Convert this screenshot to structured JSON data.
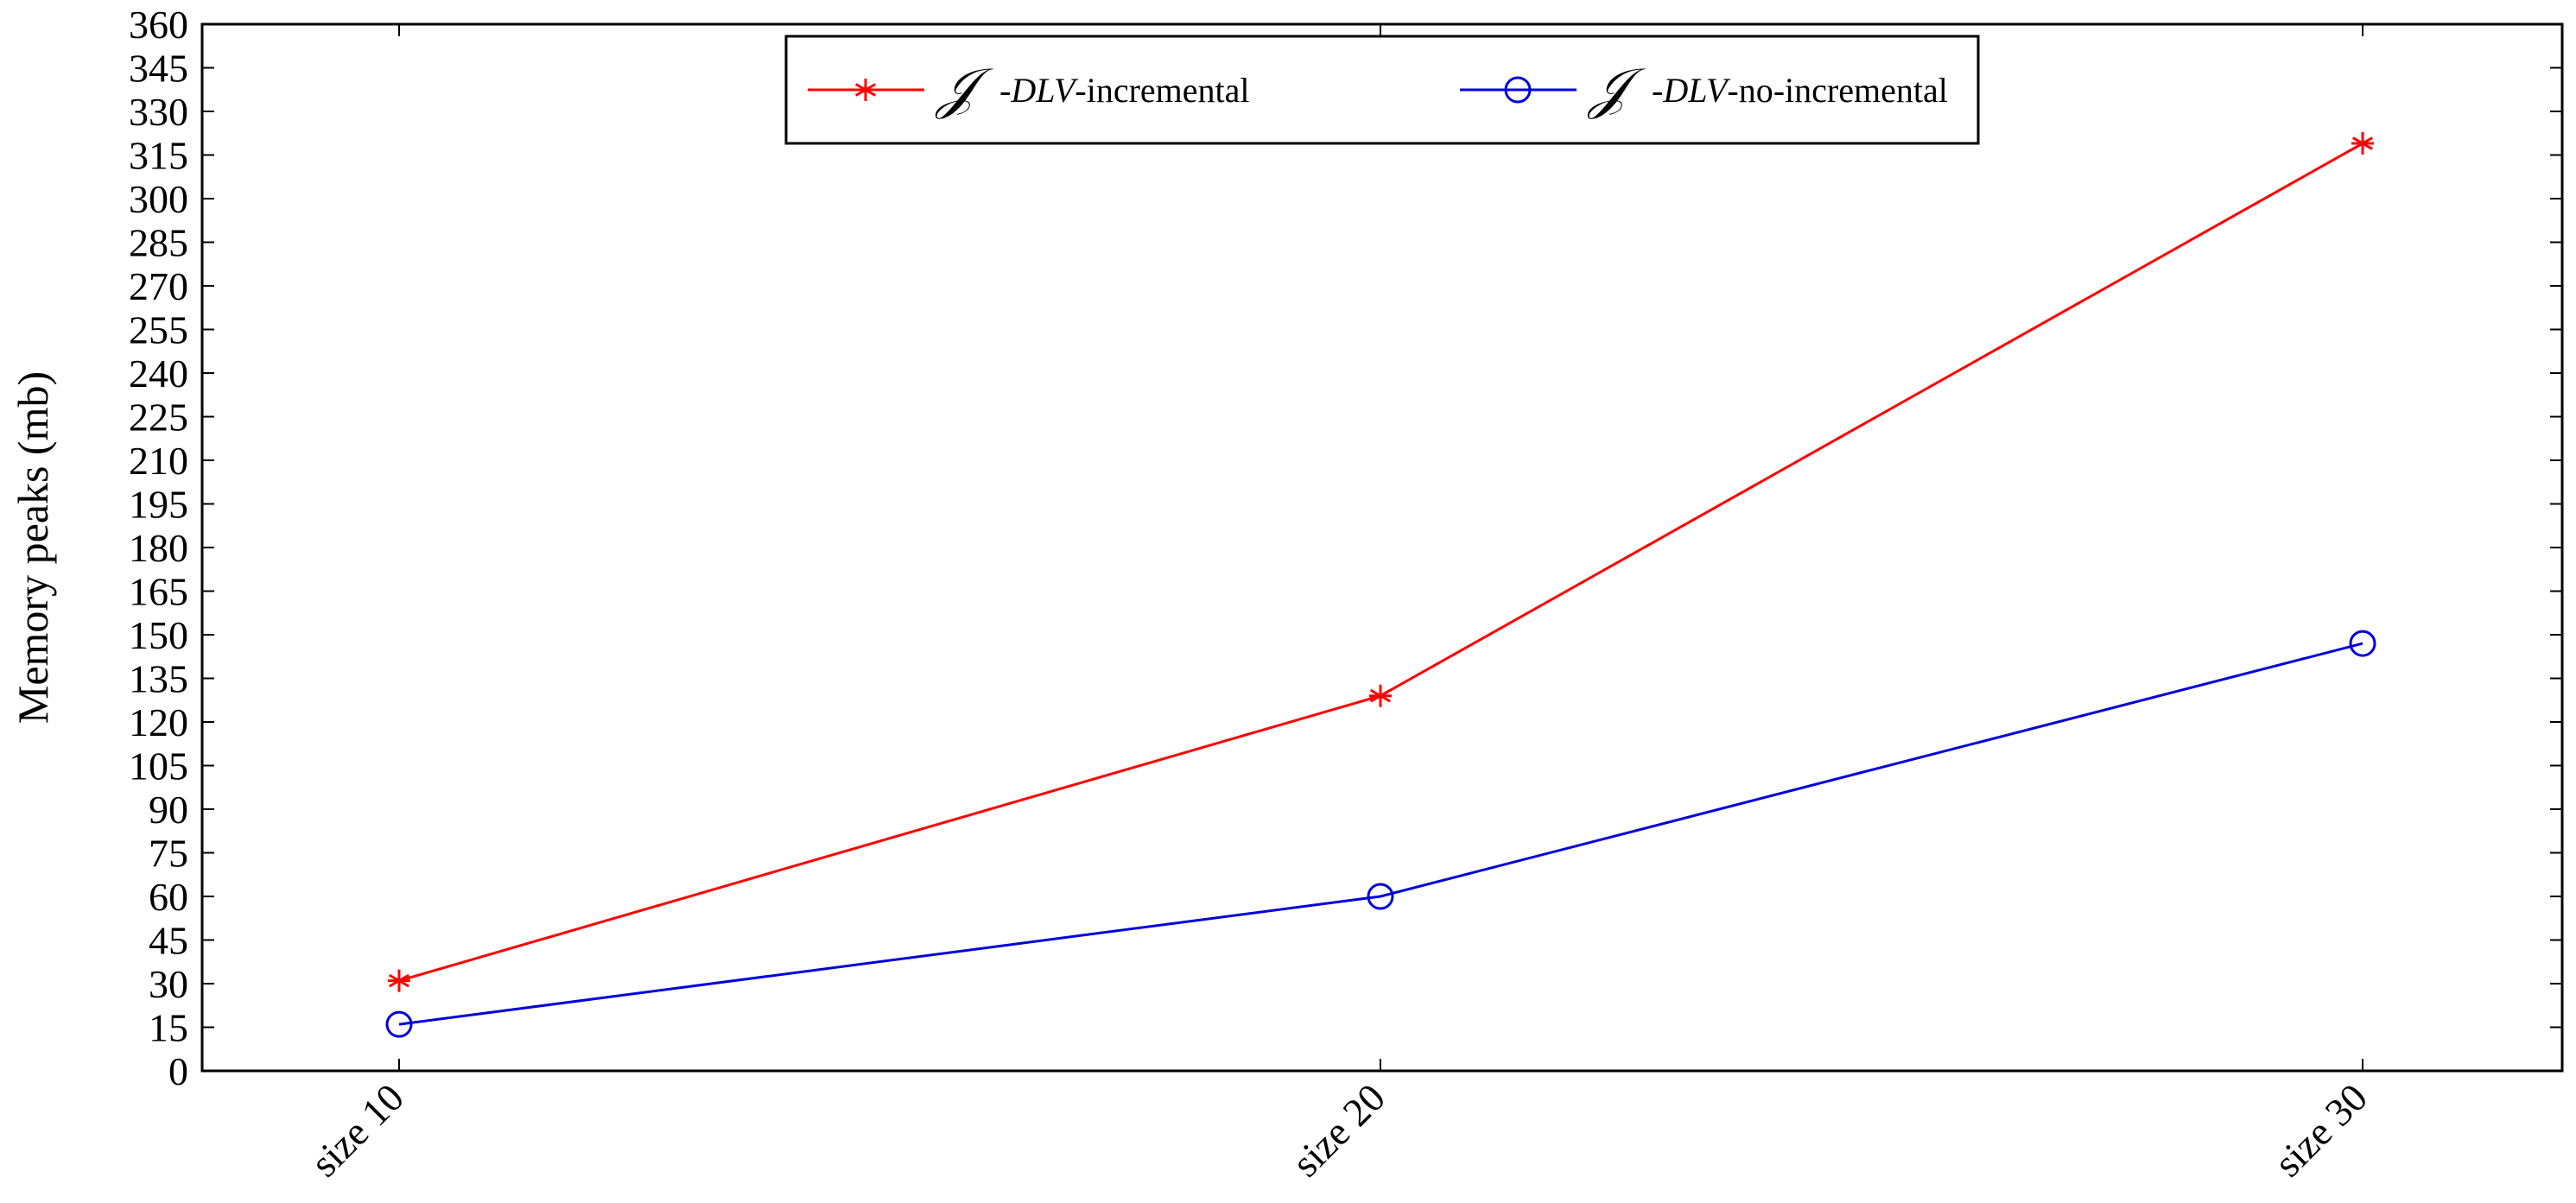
{
  "chart_data": {
    "type": "line",
    "categories": [
      "size 10",
      "size 20",
      "size 30"
    ],
    "series": [
      {
        "name_symbol": "𝒥",
        "name_italic": "-DLV",
        "name_rest": "-incremental",
        "color": "#ff0000",
        "marker": "star",
        "values": [
          31,
          129,
          319
        ]
      },
      {
        "name_symbol": "𝒥",
        "name_italic": "-DLV",
        "name_rest": "-no-incremental",
        "color": "#0000dd",
        "marker": "circle",
        "values": [
          16,
          60,
          147
        ]
      }
    ],
    "title": "",
    "xlabel": "",
    "ylabel": "Memory peaks (mb)",
    "ylim": [
      0,
      360
    ],
    "yticks": [
      0,
      15,
      30,
      45,
      60,
      75,
      90,
      105,
      120,
      135,
      150,
      165,
      180,
      195,
      210,
      225,
      240,
      255,
      270,
      285,
      300,
      315,
      330,
      345,
      360
    ],
    "grid": false,
    "legend_position": "top-center"
  }
}
